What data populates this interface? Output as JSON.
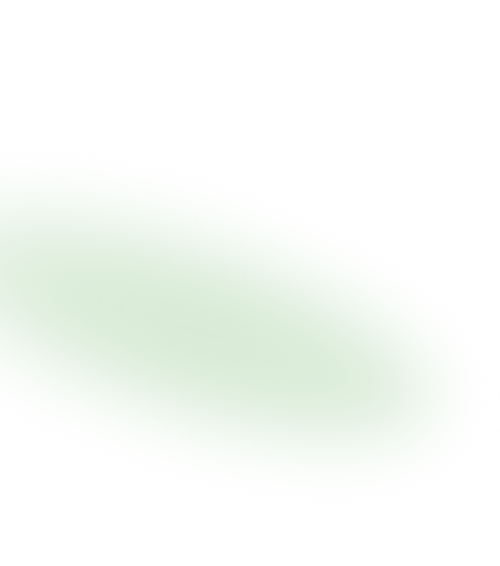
{
  "background": {
    "color": "#ffffff",
    "glow_color": "#d6ead4"
  }
}
